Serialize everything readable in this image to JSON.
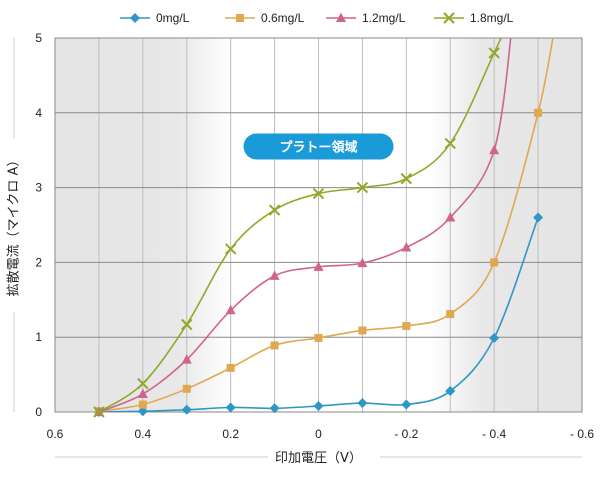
{
  "chart_data": {
    "type": "line",
    "xlabel": "印加電圧（V）",
    "ylabel": "拡散電流（マイクロ A）",
    "xlim": [
      0.6,
      -0.6
    ],
    "ylim": [
      0,
      5
    ],
    "x_ticks": [
      "0.6",
      "0.4",
      "0.2",
      "0",
      "- 0.2",
      "- 0.4",
      "- 0.6"
    ],
    "y_ticks": [
      "0",
      "1",
      "2",
      "3",
      "4",
      "5"
    ],
    "legend_position": "top",
    "grid": true,
    "shaded_x_ranges": [
      [
        0.6,
        0.2
      ],
      [
        -0.25,
        -0.6
      ]
    ],
    "annotation": {
      "text": "プラトー領域",
      "x": 0,
      "y": 3.55,
      "color": "#1a9ad6"
    },
    "series": [
      {
        "name": "0mg/L",
        "color": "#2e97c7",
        "marker": "diamond",
        "x": [
          0.5,
          0.4,
          0.3,
          0.2,
          0.1,
          0,
          -0.1,
          -0.2,
          -0.3,
          -0.4,
          -0.5
        ],
        "y": [
          0.0,
          0.01,
          0.03,
          0.06,
          0.05,
          0.08,
          0.12,
          0.1,
          0.28,
          0.99,
          2.6
        ]
      },
      {
        "name": "0.6mg/L",
        "color": "#e0a850",
        "marker": "square",
        "x": [
          0.5,
          0.4,
          0.3,
          0.2,
          0.1,
          0,
          -0.1,
          -0.2,
          -0.3,
          -0.4,
          -0.5
        ],
        "y": [
          0.01,
          0.1,
          0.31,
          0.59,
          0.89,
          0.99,
          1.09,
          1.15,
          1.31,
          2.0,
          4.0
        ]
      },
      {
        "name": "1.2mg/L",
        "color": "#d0648f",
        "marker": "triangle",
        "x": [
          0.5,
          0.4,
          0.3,
          0.2,
          0.1,
          0,
          -0.1,
          -0.2,
          -0.3,
          -0.4
        ],
        "y": [
          0.0,
          0.24,
          0.7,
          1.36,
          1.82,
          1.94,
          1.99,
          2.2,
          2.6,
          3.5
        ]
      },
      {
        "name": "1.8mg/L",
        "color": "#8fa92a",
        "marker": "x",
        "x": [
          0.5,
          0.4,
          0.3,
          0.2,
          0.1,
          0,
          -0.1,
          -0.2,
          -0.3,
          -0.4
        ],
        "y": [
          0.0,
          0.38,
          1.17,
          2.18,
          2.7,
          2.92,
          3.0,
          3.12,
          3.59,
          4.8
        ]
      }
    ]
  }
}
